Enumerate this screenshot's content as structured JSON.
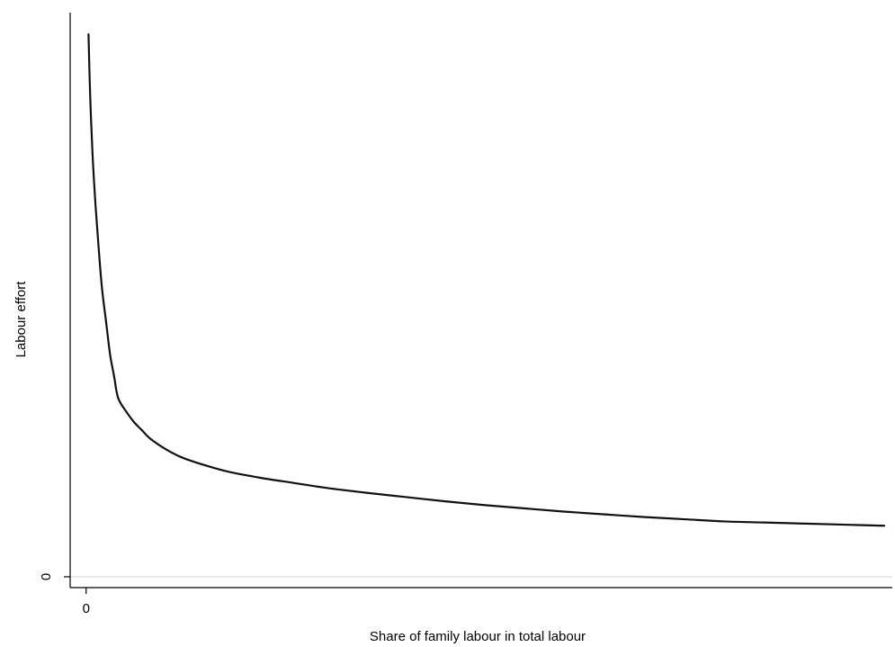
{
  "chart_data": {
    "type": "line",
    "title": "",
    "xlabel": "Share of family labour in total labour",
    "ylabel": "Labour effort",
    "x_ticks": [
      {
        "value": 0,
        "label": "0"
      }
    ],
    "y_ticks": [
      {
        "value": 0,
        "label": "0"
      }
    ],
    "xlim": [
      -0.02,
      1.01
    ],
    "ylim": [
      -0.02,
      1.04
    ],
    "grid": false,
    "reference_lines": [
      {
        "axis": "y",
        "value": 0
      }
    ],
    "series": [
      {
        "color": "#111111",
        "x": [
          0.003,
          0.005,
          0.008,
          0.012,
          0.016,
          0.02,
          0.025,
          0.03,
          0.035,
          0.04,
          0.05,
          0.06,
          0.07,
          0.08,
          0.1,
          0.12,
          0.15,
          0.18,
          0.22,
          0.26,
          0.3,
          0.35,
          0.4,
          0.45,
          0.5,
          0.55,
          0.6,
          0.65,
          0.7,
          0.75,
          0.8,
          0.85,
          0.9,
          0.95,
          1.0
        ],
        "y": [
          1.0,
          0.89,
          0.78,
          0.68,
          0.6,
          0.53,
          0.47,
          0.41,
          0.37,
          0.33,
          0.305,
          0.285,
          0.27,
          0.255,
          0.235,
          0.22,
          0.205,
          0.193,
          0.182,
          0.173,
          0.164,
          0.155,
          0.147,
          0.139,
          0.132,
          0.126,
          0.12,
          0.115,
          0.11,
          0.106,
          0.102,
          0.1,
          0.098,
          0.096,
          0.094
        ]
      }
    ]
  }
}
